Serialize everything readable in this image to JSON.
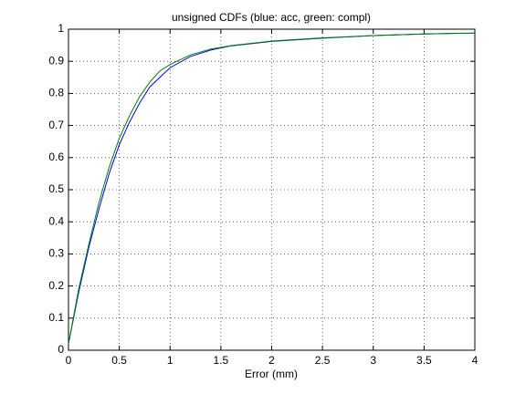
{
  "chart_data": {
    "type": "line",
    "title": "unsigned CDFs (blue: acc, green: compl)",
    "x_label": "Error (mm)",
    "x": [
      0,
      0.1,
      0.2,
      0.3,
      0.4,
      0.5,
      0.6,
      0.7,
      0.8,
      0.9,
      1,
      1.2,
      1.4,
      1.6,
      1.8,
      2,
      2.5,
      3,
      3.5,
      4
    ],
    "series": [
      {
        "color": "#0000ff",
        "values": [
          0.02,
          0.18,
          0.32,
          0.44,
          0.55,
          0.64,
          0.71,
          0.77,
          0.82,
          0.85,
          0.88,
          0.915,
          0.935,
          0.948,
          0.955,
          0.962,
          0.972,
          0.98,
          0.985,
          0.988
        ]
      },
      {
        "color": "#008000",
        "values": [
          0.02,
          0.19,
          0.33,
          0.46,
          0.57,
          0.66,
          0.73,
          0.79,
          0.835,
          0.87,
          0.89,
          0.92,
          0.938,
          0.949,
          0.956,
          0.963,
          0.973,
          0.98,
          0.985,
          0.988
        ]
      }
    ],
    "xlim": [
      0,
      4
    ],
    "xticks": [
      0,
      0.5,
      1,
      1.5,
      2,
      2.5,
      3,
      3.5,
      4
    ],
    "ylim": [
      0,
      1
    ],
    "yticks": [
      0,
      0.1,
      0.2,
      0.3,
      0.4,
      0.5,
      0.6,
      0.7,
      0.8,
      0.9,
      1
    ],
    "grid": true
  }
}
